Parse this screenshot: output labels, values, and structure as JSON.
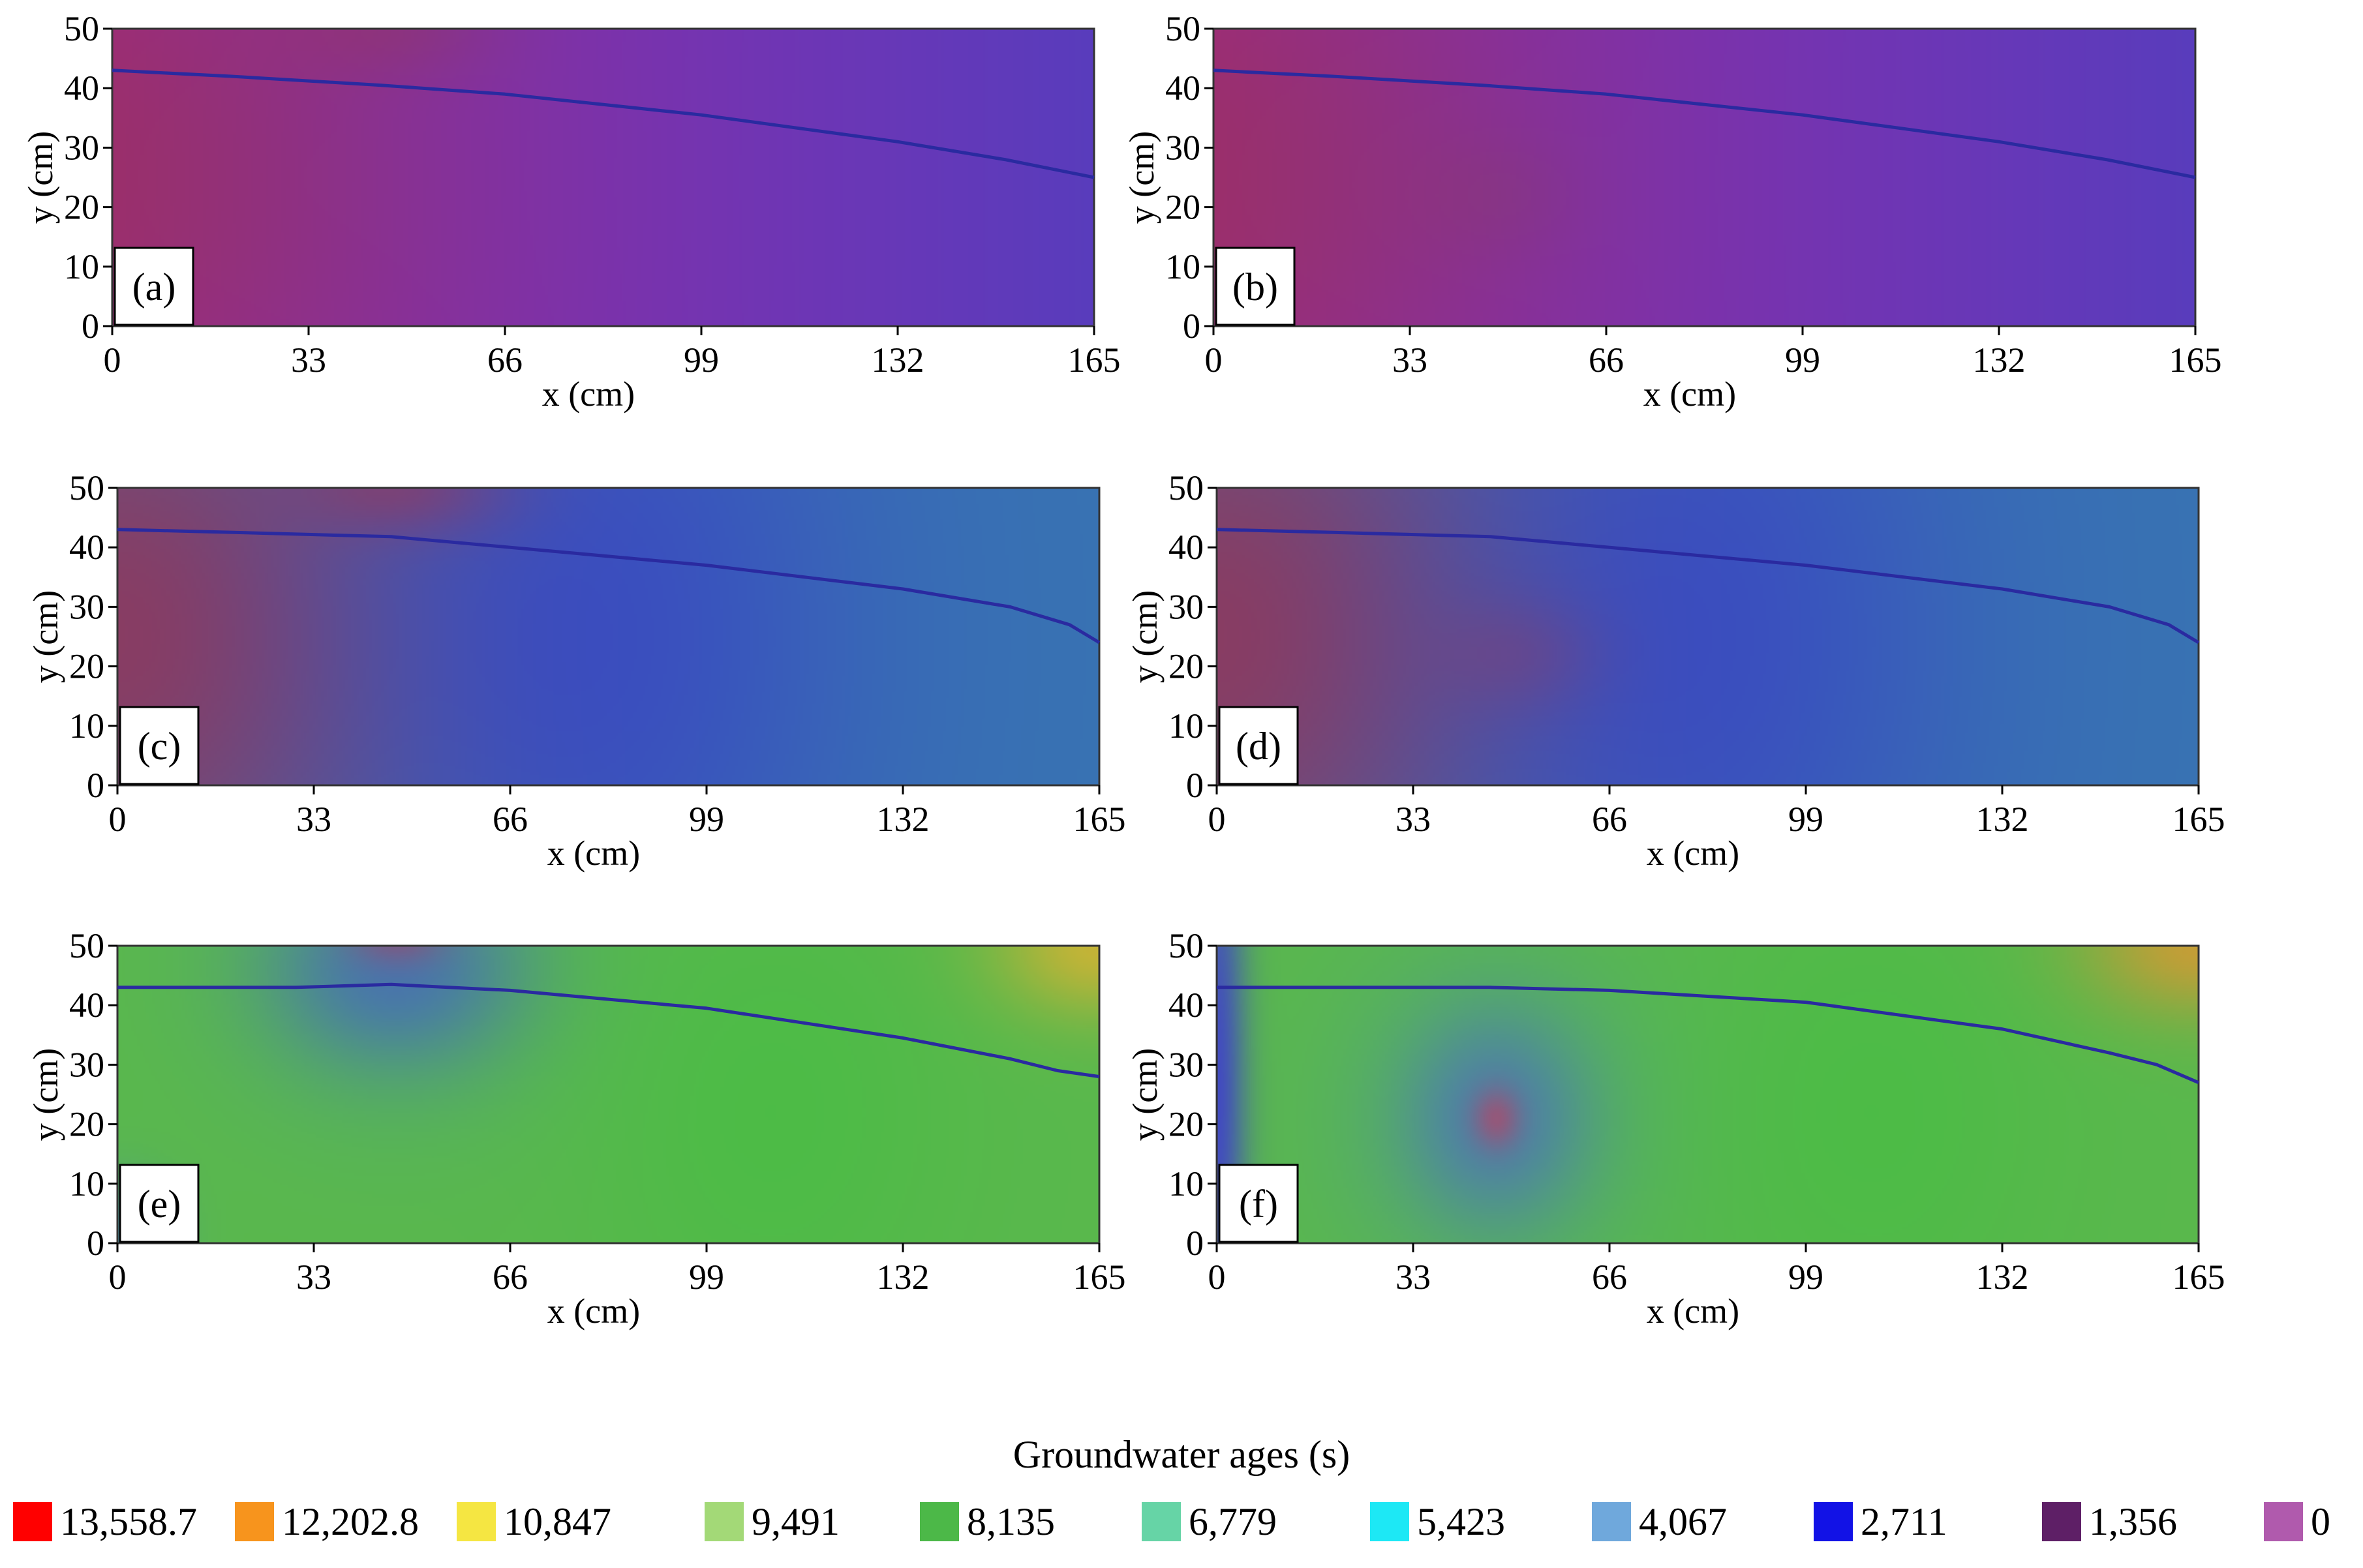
{
  "chart_data": [
    {
      "type": "heatmap",
      "panel_label": "(a)",
      "xlabel": "x (cm)",
      "ylabel": "y (cm)",
      "xticks": [
        "0",
        "33",
        "66",
        "99",
        "132",
        "165"
      ],
      "yticks": [
        "0",
        "10",
        "20",
        "30",
        "40",
        "50"
      ],
      "xlim": [
        0,
        165
      ],
      "ylim": [
        0,
        50
      ],
      "water_table": [
        [
          0,
          43
        ],
        [
          20,
          42
        ],
        [
          45,
          40.5
        ],
        [
          66,
          39
        ],
        [
          99,
          35.5
        ],
        [
          132,
          31
        ],
        [
          150,
          28
        ],
        [
          165,
          25
        ]
      ],
      "field": {
        "base": [
          0.62,
          0.15,
          0.66
        ],
        "strength": 0.9,
        "blobs": [
          {
            "x": 0,
            "y": 25,
            "sx": 70,
            "sy": 60,
            "c": [
              0.6,
              0.2,
              0.32
            ],
            "w": 0.7
          },
          {
            "x": 47,
            "y": 50,
            "sx": 18,
            "sy": 8,
            "c": [
              0.65,
              0.2,
              0.3
            ],
            "w": 0.5
          }
        ]
      }
    },
    {
      "type": "heatmap",
      "panel_label": "(b)",
      "xlabel": "x (cm)",
      "ylabel": "y (cm)",
      "xticks": [
        "0",
        "33",
        "66",
        "99",
        "132",
        "165"
      ],
      "yticks": [
        "0",
        "10",
        "20",
        "30",
        "40",
        "50"
      ],
      "xlim": [
        0,
        165
      ],
      "ylim": [
        0,
        50
      ],
      "water_table": [
        [
          0,
          43
        ],
        [
          20,
          42
        ],
        [
          45,
          40.5
        ],
        [
          66,
          39
        ],
        [
          99,
          35.5
        ],
        [
          132,
          31
        ],
        [
          150,
          28
        ],
        [
          165,
          25
        ]
      ],
      "field": {
        "base": [
          0.62,
          0.15,
          0.66
        ],
        "strength": 0.9,
        "blobs": [
          {
            "x": 0,
            "y": 25,
            "sx": 70,
            "sy": 60,
            "c": [
              0.6,
              0.2,
              0.32
            ],
            "w": 0.7
          },
          {
            "x": 47,
            "y": 22,
            "sx": 14,
            "sy": 10,
            "c": [
              0.6,
              0.22,
              0.35
            ],
            "w": 0.35
          }
        ]
      }
    },
    {
      "type": "heatmap",
      "panel_label": "(c)",
      "xlabel": "x (cm)",
      "ylabel": "y (cm)",
      "xticks": [
        "0",
        "33",
        "66",
        "99",
        "132",
        "165"
      ],
      "yticks": [
        "0",
        "10",
        "20",
        "30",
        "40",
        "50"
      ],
      "xlim": [
        0,
        165
      ],
      "ylim": [
        0,
        50
      ],
      "water_table": [
        [
          0,
          43
        ],
        [
          20,
          42.5
        ],
        [
          46,
          41.8
        ],
        [
          66,
          40
        ],
        [
          99,
          37
        ],
        [
          132,
          33
        ],
        [
          150,
          30
        ],
        [
          160,
          27
        ],
        [
          165,
          24
        ]
      ],
      "field": {
        "base": [
          0.22,
          0.45,
          0.7
        ],
        "strength": 0.8,
        "blobs": [
          {
            "x": 0,
            "y": 25,
            "sx": 55,
            "sy": 60,
            "c": [
              0.6,
              0.2,
              0.32
            ],
            "w": 0.85
          },
          {
            "x": 80,
            "y": 25,
            "sx": 45,
            "sy": 70,
            "c": [
              0.22,
              0.25,
              0.78
            ],
            "w": 0.7
          },
          {
            "x": 47,
            "y": 50,
            "sx": 18,
            "sy": 8,
            "c": [
              0.65,
              0.2,
              0.3
            ],
            "w": 0.5
          }
        ]
      }
    },
    {
      "type": "heatmap",
      "panel_label": "(d)",
      "xlabel": "x (cm)",
      "ylabel": "y (cm)",
      "xticks": [
        "0",
        "33",
        "66",
        "99",
        "132",
        "165"
      ],
      "yticks": [
        "0",
        "10",
        "20",
        "30",
        "40",
        "50"
      ],
      "xlim": [
        0,
        165
      ],
      "ylim": [
        0,
        50
      ],
      "water_table": [
        [
          0,
          43
        ],
        [
          20,
          42.5
        ],
        [
          46,
          41.8
        ],
        [
          66,
          40
        ],
        [
          99,
          37
        ],
        [
          132,
          33
        ],
        [
          150,
          30
        ],
        [
          160,
          27
        ],
        [
          165,
          24
        ]
      ],
      "field": {
        "base": [
          0.22,
          0.45,
          0.7
        ],
        "strength": 0.8,
        "blobs": [
          {
            "x": 0,
            "y": 25,
            "sx": 55,
            "sy": 60,
            "c": [
              0.6,
              0.2,
              0.32
            ],
            "w": 0.85
          },
          {
            "x": 80,
            "y": 25,
            "sx": 45,
            "sy": 70,
            "c": [
              0.22,
              0.25,
              0.78
            ],
            "w": 0.7
          },
          {
            "x": 50,
            "y": 22,
            "sx": 14,
            "sy": 10,
            "c": [
              0.6,
              0.22,
              0.35
            ],
            "w": 0.3
          }
        ]
      }
    },
    {
      "type": "heatmap",
      "panel_label": "(e)",
      "xlabel": "x (cm)",
      "ylabel": "y (cm)",
      "xticks": [
        "0",
        "33",
        "66",
        "99",
        "132",
        "165"
      ],
      "yticks": [
        "0",
        "10",
        "20",
        "30",
        "40",
        "50"
      ],
      "xlim": [
        0,
        165
      ],
      "ylim": [
        0,
        50
      ],
      "water_table": [
        [
          0,
          43
        ],
        [
          30,
          43
        ],
        [
          46,
          43.5
        ],
        [
          66,
          42.5
        ],
        [
          99,
          39.5
        ],
        [
          132,
          34.5
        ],
        [
          150,
          31
        ],
        [
          158,
          29
        ],
        [
          165,
          28
        ]
      ],
      "field": {
        "base": [
          0.35,
          0.72,
          0.3
        ],
        "strength": 0.95,
        "blobs": [
          {
            "x": 47,
            "y": 46,
            "sx": 18,
            "sy": 14,
            "c": [
              0.25,
              0.25,
              0.8
            ],
            "w": 0.95
          },
          {
            "x": 47,
            "y": 48,
            "sx": 28,
            "sy": 26,
            "c": [
              0.3,
              0.62,
              0.6
            ],
            "w": 0.55
          },
          {
            "x": 47,
            "y": 52,
            "sx": 8,
            "sy": 5,
            "c": [
              0.65,
              0.25,
              0.4
            ],
            "w": 0.6
          },
          {
            "x": 0,
            "y": 0,
            "sx": 9,
            "sy": 10,
            "c": [
              0.3,
              0.55,
              0.75
            ],
            "w": 0.8
          },
          {
            "x": 165,
            "y": 50,
            "sx": 18,
            "sy": 12,
            "c": [
              0.85,
              0.7,
              0.2
            ],
            "w": 0.85
          },
          {
            "x": 110,
            "y": 22,
            "sx": 30,
            "sy": 40,
            "c": [
              0.25,
              0.75,
              0.25
            ],
            "w": 0.5
          }
        ]
      }
    },
    {
      "type": "heatmap",
      "panel_label": "(f)",
      "xlabel": "x (cm)",
      "ylabel": "y (cm)",
      "xticks": [
        "0",
        "33",
        "66",
        "99",
        "132",
        "165"
      ],
      "yticks": [
        "0",
        "10",
        "20",
        "30",
        "40",
        "50"
      ],
      "xlim": [
        0,
        165
      ],
      "ylim": [
        0,
        50
      ],
      "water_table": [
        [
          0,
          43
        ],
        [
          30,
          43
        ],
        [
          46,
          43
        ],
        [
          66,
          42.5
        ],
        [
          99,
          40.5
        ],
        [
          132,
          36
        ],
        [
          150,
          32
        ],
        [
          158,
          30
        ],
        [
          165,
          27
        ]
      ],
      "field": {
        "base": [
          0.35,
          0.72,
          0.3
        ],
        "strength": 0.95,
        "blobs": [
          {
            "x": 47,
            "y": 21,
            "sx": 13,
            "sy": 15,
            "c": [
              0.3,
              0.28,
              0.8
            ],
            "w": 0.95
          },
          {
            "x": 47,
            "y": 21,
            "sx": 26,
            "sy": 28,
            "c": [
              0.3,
              0.62,
              0.6
            ],
            "w": 0.6
          },
          {
            "x": 47,
            "y": 21,
            "sx": 4,
            "sy": 5,
            "c": [
              0.7,
              0.28,
              0.4
            ],
            "w": 0.7
          },
          {
            "x": 0,
            "y": 25,
            "sx": 5,
            "sy": 60,
            "c": [
              0.25,
              0.25,
              0.8
            ],
            "w": 0.9
          },
          {
            "x": 165,
            "y": 50,
            "sx": 20,
            "sy": 12,
            "c": [
              0.85,
              0.6,
              0.2
            ],
            "w": 0.85
          },
          {
            "x": 110,
            "y": 22,
            "sx": 30,
            "sy": 40,
            "c": [
              0.25,
              0.75,
              0.25
            ],
            "w": 0.5
          }
        ]
      }
    }
  ],
  "legend": {
    "title": "Groundwater ages (s)",
    "items": [
      {
        "label": "13,558.7",
        "color": "#ff0000"
      },
      {
        "label": "12,202.8",
        "color": "#f7941d"
      },
      {
        "label": "10,847",
        "color": "#f5e642"
      },
      {
        "label": "9,491",
        "color": "#a3d977"
      },
      {
        "label": "8,135",
        "color": "#4cb848"
      },
      {
        "label": "6,779",
        "color": "#66d4a6"
      },
      {
        "label": "5,423",
        "color": "#1de8f5"
      },
      {
        "label": "4,067",
        "color": "#6fa8dc"
      },
      {
        "label": "2,711",
        "color": "#1212e6"
      },
      {
        "label": "1,356",
        "color": "#5e1f66"
      },
      {
        "label": "0",
        "color": "#b05aad"
      }
    ]
  }
}
